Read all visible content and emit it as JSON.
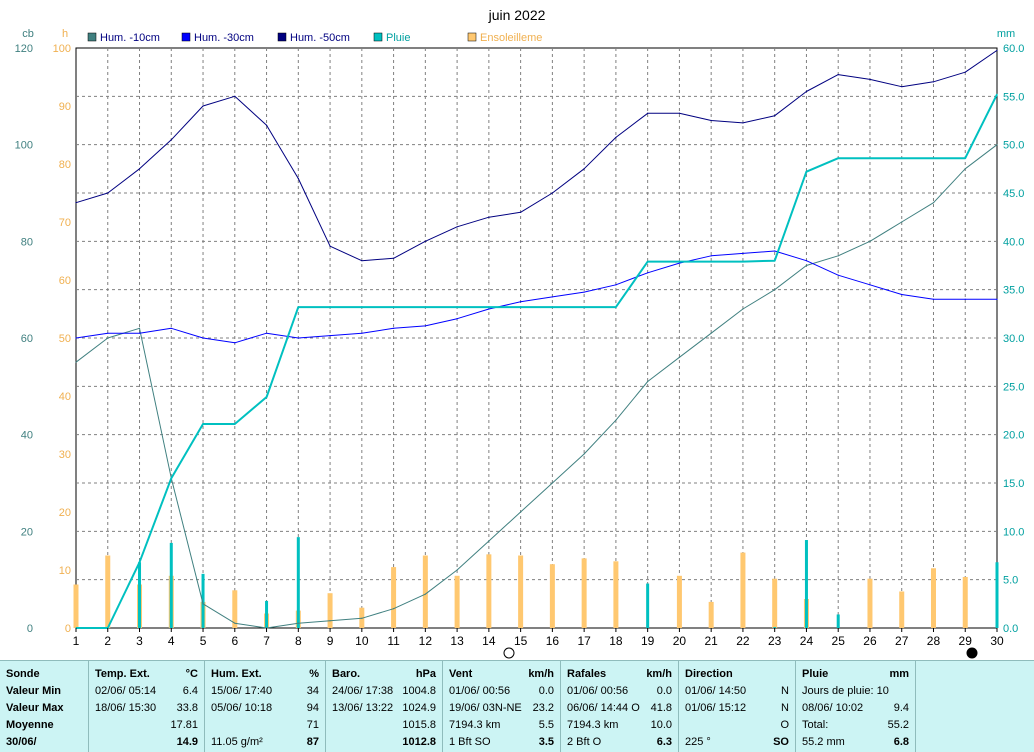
{
  "chart_data": {
    "type": "line",
    "title": "juin 2022",
    "left_axis_unit": "cb",
    "left_axis_ticks": [
      0,
      20,
      40,
      60,
      80,
      100,
      120
    ],
    "sun_axis_unit": "h",
    "sun_axis_ticks": [
      0,
      10,
      20,
      30,
      40,
      50,
      60,
      70,
      80,
      90,
      100
    ],
    "right_axis_unit": "mm",
    "right_axis_ticks": [
      "0.0",
      "5.0",
      "10.0",
      "15.0",
      "20.0",
      "25.0",
      "30.0",
      "35.0",
      "40.0",
      "45.0",
      "50.0",
      "55.0",
      "60.0"
    ],
    "x": [
      1,
      2,
      3,
      4,
      5,
      6,
      7,
      8,
      9,
      10,
      11,
      12,
      13,
      14,
      15,
      16,
      17,
      18,
      19,
      20,
      21,
      22,
      23,
      24,
      25,
      26,
      27,
      28,
      29,
      30
    ],
    "legend_position": "top",
    "grid": true,
    "series": [
      {
        "name": "Hum. -10cm",
        "color": "#408080",
        "axis": "cb",
        "values": [
          55,
          60,
          62,
          31,
          5,
          1,
          0,
          1,
          1.5,
          2,
          4,
          7,
          12,
          18,
          24,
          30,
          36,
          43,
          51,
          56,
          61,
          66,
          70,
          75,
          77,
          80,
          84,
          88,
          95,
          100
        ]
      },
      {
        "name": "Hum. -30cm",
        "color": "#0000ff",
        "axis": "cb",
        "values": [
          60,
          61,
          61,
          62,
          60,
          59,
          61,
          60,
          60.5,
          61,
          62,
          62.5,
          64,
          66,
          67.5,
          68.5,
          69.5,
          71,
          73.5,
          75.5,
          77,
          77.5,
          78,
          76,
          73,
          71,
          69,
          68,
          68,
          68
        ]
      },
      {
        "name": "Hum. -50cm",
        "color": "#000080",
        "axis": "cb",
        "values": [
          88,
          90,
          95,
          101,
          108,
          110,
          104,
          93,
          79,
          76,
          76.5,
          80,
          83,
          85,
          86,
          90,
          95,
          101.5,
          106.5,
          106.5,
          105,
          104.5,
          106,
          111,
          114.5,
          113.5,
          112,
          113,
          115,
          119.5
        ]
      },
      {
        "name": "Pluie",
        "color": "#00c0c0",
        "axis": "mm",
        "kind": "cumulative",
        "values": [
          0,
          0,
          6.8,
          15.5,
          21.1,
          21.1,
          23.9,
          33.2,
          33.2,
          33.2,
          33.2,
          33.2,
          33.2,
          33.2,
          33.2,
          33.2,
          33.2,
          33.2,
          37.9,
          37.9,
          37.9,
          37.9,
          38.0,
          47.2,
          48.6,
          48.6,
          48.6,
          48.6,
          48.6,
          55.2
        ]
      },
      {
        "name": "Pluie",
        "color": "#00c0c0",
        "axis": "mm",
        "kind": "daily-bars",
        "values": [
          0,
          0,
          6.8,
          8.8,
          5.6,
          0,
          2.8,
          9.4,
          0,
          0,
          0,
          0,
          0,
          0,
          0,
          0,
          0,
          0,
          4.6,
          0,
          0,
          0,
          0.1,
          9.1,
          1.4,
          0,
          0,
          0,
          0,
          6.8
        ]
      },
      {
        "name": "Ensoleilleme",
        "color": "#ffc870",
        "axis": "h",
        "kind": "bars",
        "values": [
          7.5,
          12.5,
          7.5,
          9,
          4.5,
          6.5,
          2.5,
          3,
          6,
          3.5,
          10.5,
          12.5,
          9,
          12.7,
          12.5,
          11,
          12,
          11.5,
          0,
          9,
          4.5,
          13,
          8.5,
          5,
          0,
          8.5,
          6.3,
          10.3,
          8.8,
          0
        ]
      }
    ]
  },
  "stats": {
    "row_labels": [
      "Sonde",
      "Valeur Min",
      "Valeur Max",
      "Moyenne",
      "30/06/"
    ],
    "columns": [
      {
        "title": "Temp. Ext.",
        "unit": "°C",
        "rows": [
          {
            "a": "02/06/  05:14",
            "b": "6.4"
          },
          {
            "a": "18/06/  15:30",
            "b": "33.8"
          },
          {
            "a": "",
            "b": "17.81"
          },
          {
            "a": "",
            "b": "14.9"
          }
        ]
      },
      {
        "title": "Hum. Ext.",
        "unit": "%",
        "rows": [
          {
            "a": "15/06/  17:40",
            "b": "34"
          },
          {
            "a": "05/06/  10:18",
            "b": "94"
          },
          {
            "a": "",
            "b": "71"
          },
          {
            "a": "11.05 g/m²",
            "b": "87"
          }
        ]
      },
      {
        "title": "Baro.",
        "unit": "hPa",
        "rows": [
          {
            "a": "24/06/  17:38",
            "b": "1004.8"
          },
          {
            "a": "13/06/  13:22",
            "b": "1024.9"
          },
          {
            "a": "",
            "b": "1015.8"
          },
          {
            "a": "",
            "b": "1012.8"
          }
        ]
      },
      {
        "title": "Vent",
        "unit": "km/h",
        "rows": [
          {
            "a": "01/06/  00:56",
            "b": "0.0"
          },
          {
            "a": "19/06/  03N-NE",
            "b": "23.2"
          },
          {
            "a": "7194.3 km",
            "b": "5.5"
          },
          {
            "a": "1 Bft SO",
            "b": "3.5"
          }
        ]
      },
      {
        "title": "Rafales",
        "unit": "km/h",
        "rows": [
          {
            "a": "01/06/  00:56",
            "b": "0.0"
          },
          {
            "a": "06/06/  14:44  O",
            "b": "41.8"
          },
          {
            "a": "7194.3 km",
            "b": "10.0"
          },
          {
            "a": "2 Bft O",
            "b": "6.3"
          }
        ]
      },
      {
        "title": "Direction",
        "unit": "",
        "rows": [
          {
            "a": "01/06/  14:50",
            "b": "N"
          },
          {
            "a": "01/06/  15:12",
            "b": "N"
          },
          {
            "a": "",
            "b": "O"
          },
          {
            "a": "225 °",
            "b": "SO"
          }
        ]
      },
      {
        "title": "Pluie",
        "unit": "mm",
        "rows": [
          {
            "a": "Jours de pluie: 10",
            "b": ""
          },
          {
            "a": "08/06/  10:02",
            "b": "9.4"
          },
          {
            "a": "Total:",
            "b": "55.2"
          },
          {
            "a": "55.2 mm",
            "b": "6.8"
          }
        ]
      }
    ]
  }
}
